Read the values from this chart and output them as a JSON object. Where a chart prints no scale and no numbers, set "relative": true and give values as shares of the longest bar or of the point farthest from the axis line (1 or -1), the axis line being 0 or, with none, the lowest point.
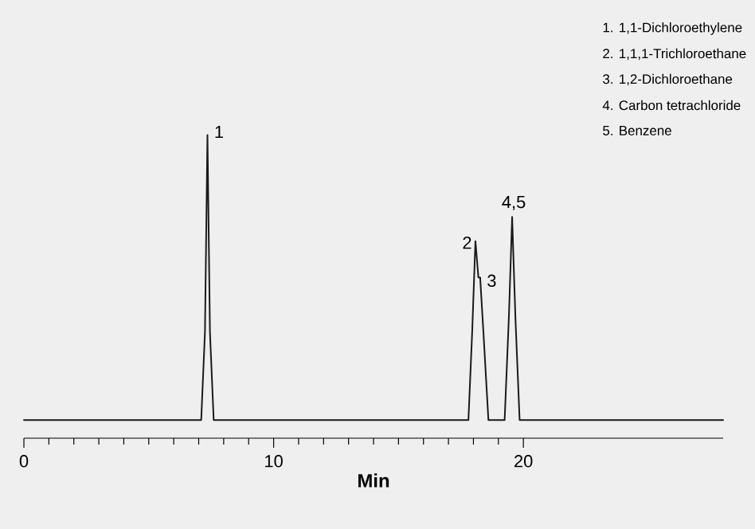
{
  "chart_data": {
    "type": "line",
    "relative": true,
    "xlabel": "**Min**",
    "color": "#1a1a1a",
    "x": [
      0,
      7.1,
      7.25,
      7.35,
      7.45,
      7.6,
      17.8,
      17.95,
      18.08,
      18.2,
      18.27,
      18.4,
      18.6,
      19.25,
      19.42,
      19.55,
      19.68,
      19.85,
      28
    ],
    "values": [
      0.06,
      0.06,
      0.35,
      1,
      0.35,
      0.06,
      0.06,
      0.35,
      0.65,
      0.53,
      0.53,
      0.35,
      0.06,
      0.06,
      0.4,
      0.73,
      0.4,
      0.06,
      0.06
    ],
    "xlim": [
      0,
      28
    ],
    "xticks": [
      0,
      10,
      20
    ],
    "tick_labels": "x",
    "grid": false,
    "annotations": [
      "1.  1,1-Dichloroethylene",
      "2.  1,1,1-Trichloroethane",
      "3.  1,2-Dichloroethane",
      "4.  Carbon tetrachloride",
      "5.  Benzene",
      {
        "text": "1",
        "x": 7.35,
        "y": 1
      },
      {
        "text": "2",
        "x": 18.08,
        "y": 0.65
      },
      {
        "text": "3",
        "x": 18.27,
        "y": 0.53
      },
      {
        "text": "4,5",
        "x": 19.55,
        "y": 0.73
      }
    ]
  }
}
